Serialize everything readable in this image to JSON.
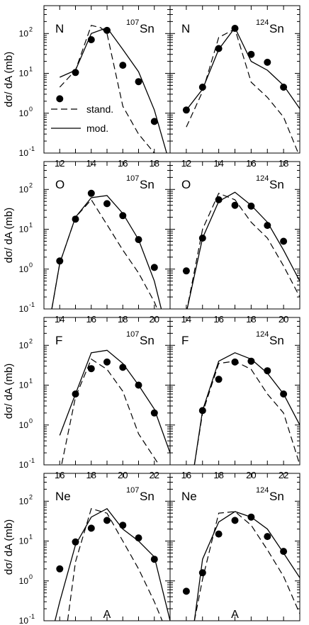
{
  "figure": {
    "ylabel": "dσ/ dA (mb)",
    "xlabel": "A",
    "legend": {
      "stand": "stand.",
      "mod": "mod."
    },
    "y_tick_labels": [
      {
        "mant": "10",
        "exp": "-1"
      },
      {
        "mant": "10",
        "exp": "0"
      },
      {
        "mant": "10",
        "exp": "1"
      },
      {
        "mant": "10",
        "exp": "2"
      }
    ]
  },
  "chart_data": [
    {
      "type": "line",
      "fragment": "N",
      "target_mass": "107",
      "target_el": "Sn",
      "xlim": [
        11,
        19
      ],
      "ylim": [
        0.1,
        500
      ],
      "yscale": "log",
      "xticks": [
        "12",
        "14",
        "16",
        "18"
      ],
      "data_points": {
        "A": [
          12,
          13,
          14,
          15,
          16,
          17,
          18
        ],
        "sigma": [
          2.3,
          10.5,
          70,
          120,
          16,
          6.2,
          0.62
        ]
      },
      "series": [
        {
          "name": "stand.",
          "x": [
            12,
            13,
            14,
            14.6,
            15,
            16,
            17,
            18,
            18.5
          ],
          "y": [
            4.5,
            12,
            160,
            140,
            100,
            1.5,
            0.3,
            0.1,
            0.07
          ]
        },
        {
          "name": "mod.",
          "x": [
            12,
            13,
            14,
            15,
            16,
            17,
            18,
            19
          ],
          "y": [
            8,
            12,
            100,
            140,
            40,
            11,
            1.2,
            0.05
          ]
        }
      ],
      "legend_location": "lower-left"
    },
    {
      "type": "line",
      "fragment": "N",
      "target_mass": "124",
      "target_el": "Sn",
      "xlim": [
        11,
        19
      ],
      "ylim": [
        0.1,
        500
      ],
      "yscale": "log",
      "xticks": [
        "12",
        "14",
        "16",
        "18"
      ],
      "data_points": {
        "A": [
          12,
          13,
          14,
          15,
          16,
          17,
          18
        ],
        "sigma": [
          1.2,
          4.5,
          42,
          135,
          30,
          19,
          4.5
        ]
      },
      "series": [
        {
          "name": "stand.",
          "x": [
            12,
            13,
            14,
            15,
            16,
            17,
            18,
            19
          ],
          "y": [
            0.45,
            3.5,
            80,
            130,
            6,
            2.5,
            0.8,
            0.08
          ]
        },
        {
          "name": "mod.",
          "x": [
            12,
            13,
            14,
            15,
            16,
            17,
            18,
            19
          ],
          "y": [
            1.2,
            4,
            40,
            140,
            20,
            12,
            5,
            1.3
          ]
        }
      ]
    },
    {
      "type": "line",
      "fragment": "O",
      "target_mass": "107",
      "target_el": "Sn",
      "xlim": [
        13,
        21
      ],
      "ylim": [
        0.1,
        500
      ],
      "yscale": "log",
      "xticks": [
        "14",
        "16",
        "18",
        "20"
      ],
      "data_points": {
        "A": [
          14,
          15,
          16,
          17,
          18,
          19,
          20
        ],
        "sigma": [
          1.6,
          18,
          80,
          44,
          22,
          5.5,
          1.1
        ]
      },
      "series": [
        {
          "name": "stand.",
          "x": [
            13.5,
            14,
            15,
            16,
            17,
            18,
            19,
            20,
            20.5
          ],
          "y": [
            0.1,
            1.4,
            20,
            55,
            13,
            3,
            0.8,
            0.15,
            0.05
          ]
        },
        {
          "name": "mod.",
          "x": [
            13.5,
            14,
            15,
            16,
            17,
            18,
            19,
            20,
            20.5
          ],
          "y": [
            0.1,
            1.4,
            20,
            62,
            70,
            25,
            5.5,
            0.5,
            0.08
          ]
        }
      ]
    },
    {
      "type": "line",
      "fragment": "O",
      "target_mass": "124",
      "target_el": "Sn",
      "xlim": [
        13,
        21
      ],
      "ylim": [
        0.1,
        500
      ],
      "yscale": "log",
      "xticks": [
        "14",
        "16",
        "18",
        "20"
      ],
      "data_points": {
        "A": [
          14,
          15,
          16,
          17,
          18,
          19,
          20
        ],
        "sigma": [
          0.9,
          6,
          55,
          40,
          38,
          12.5,
          5
        ]
      },
      "series": [
        {
          "name": "stand.",
          "x": [
            14,
            15,
            16,
            17,
            18,
            19,
            20,
            21
          ],
          "y": [
            0.08,
            10,
            80,
            55,
            15,
            6,
            1.2,
            0.2
          ]
        },
        {
          "name": "mod.",
          "x": [
            14,
            15,
            16,
            17,
            18,
            19,
            20,
            21
          ],
          "y": [
            0.08,
            6,
            50,
            85,
            40,
            15,
            3,
            0.5
          ]
        }
      ]
    },
    {
      "type": "line",
      "fragment": "F",
      "target_mass": "107",
      "target_el": "Sn",
      "xlim": [
        15,
        23
      ],
      "ylim": [
        0.1,
        500
      ],
      "yscale": "log",
      "xticks": [
        "16",
        "18",
        "20",
        "22"
      ],
      "data_points": {
        "A": [
          17,
          18,
          19,
          20,
          21,
          22
        ],
        "sigma": [
          6,
          26,
          38,
          28,
          10,
          2
        ]
      },
      "series": [
        {
          "name": "stand.",
          "x": [
            16,
            17,
            18,
            19,
            20,
            21,
            22,
            22.8
          ],
          "y": [
            0.06,
            5,
            45,
            25,
            7,
            0.6,
            0.15,
            0.05
          ]
        },
        {
          "name": "mod.",
          "x": [
            16,
            17,
            18,
            19,
            20,
            21,
            22,
            23
          ],
          "y": [
            0.55,
            6,
            65,
            75,
            35,
            10,
            2.5,
            0.2
          ]
        }
      ]
    },
    {
      "type": "line",
      "fragment": "F",
      "target_mass": "124",
      "target_el": "Sn",
      "xlim": [
        15,
        23
      ],
      "ylim": [
        0.1,
        500
      ],
      "yscale": "log",
      "xticks": [
        "16",
        "18",
        "20",
        "22"
      ],
      "data_points": {
        "A": [
          17,
          18,
          19,
          20,
          21,
          22
        ],
        "sigma": [
          2.3,
          14,
          38,
          40,
          23,
          6
        ]
      },
      "series": [
        {
          "name": "stand.",
          "x": [
            16.5,
            17,
            18,
            19,
            20,
            21,
            22,
            23
          ],
          "y": [
            0.1,
            2,
            35,
            40,
            25,
            6,
            2,
            0.1
          ]
        },
        {
          "name": "mod.",
          "x": [
            16.5,
            17,
            18,
            19,
            20,
            21,
            22,
            23
          ],
          "y": [
            0.1,
            2.3,
            40,
            65,
            45,
            20,
            6,
            1
          ]
        }
      ]
    },
    {
      "type": "line",
      "fragment": "Ne",
      "target_mass": "107",
      "target_el": "Sn",
      "xlim": [
        17,
        25
      ],
      "ylim": [
        0.1,
        500
      ],
      "yscale": "log",
      "xticks": [
        "18",
        "20",
        "22",
        "24"
      ],
      "data_points": {
        "A": [
          18,
          19,
          20,
          21,
          22,
          23,
          24
        ],
        "sigma": [
          2,
          9.5,
          21,
          33,
          25,
          12,
          3.5
        ]
      },
      "series": [
        {
          "name": "stand.",
          "x": [
            18.5,
            19,
            20,
            21,
            22,
            23,
            24,
            24.5
          ],
          "y": [
            0.1,
            3,
            65,
            50,
            10,
            2,
            0.3,
            0.1
          ]
        },
        {
          "name": "mod.",
          "x": [
            17.7,
            18,
            19,
            20,
            21,
            22,
            23,
            24,
            25
          ],
          "y": [
            0.1,
            0.3,
            8,
            40,
            65,
            20,
            10,
            4,
            0.1
          ]
        }
      ]
    },
    {
      "type": "line",
      "fragment": "Ne",
      "target_mass": "124",
      "target_el": "Sn",
      "xlim": [
        17,
        25
      ],
      "ylim": [
        0.1,
        500
      ],
      "yscale": "log",
      "xticks": [
        "18",
        "20",
        "22",
        "24"
      ],
      "data_points": {
        "A": [
          18,
          19,
          20,
          21,
          22,
          23,
          24
        ],
        "sigma": [
          0.55,
          1.6,
          15,
          33,
          40,
          13,
          5.5
        ]
      },
      "series": [
        {
          "name": "stand.",
          "x": [
            18.5,
            19,
            20,
            21,
            22,
            23,
            24,
            25
          ],
          "y": [
            0.1,
            1.1,
            50,
            55,
            25,
            6,
            1.3,
            0.15
          ]
        },
        {
          "name": "mod.",
          "x": [
            18.5,
            19,
            20,
            21,
            22,
            23,
            24,
            25
          ],
          "y": [
            0.1,
            3.5,
            30,
            55,
            40,
            20,
            5,
            1.2
          ]
        }
      ]
    }
  ]
}
